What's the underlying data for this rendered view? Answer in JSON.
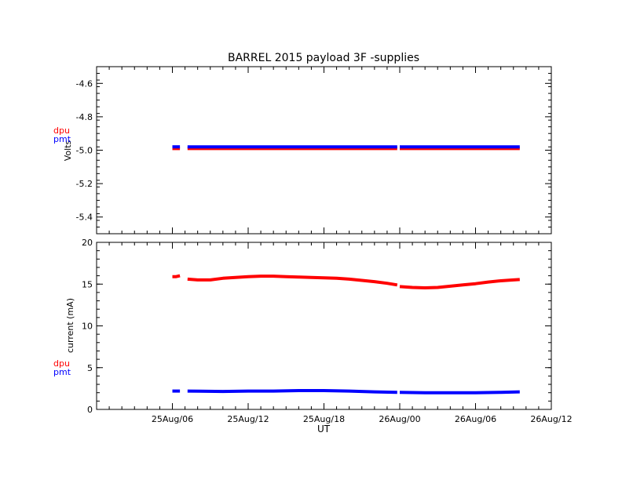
{
  "chart_data": [
    {
      "type": "line",
      "title": "BARREL 2015 payload 3F -supplies",
      "xlabel": "",
      "ylabel": "Volts",
      "ylim": [
        -5.5,
        -4.5
      ],
      "yticks": [
        "-4.6",
        "-4.8",
        "-5.0",
        "-5.2",
        "-5.4"
      ],
      "ytick_values": [
        -4.6,
        -4.8,
        -5.0,
        -5.2,
        -5.4
      ],
      "xlim_hours": [
        0,
        36
      ],
      "xtick_hours": [
        6,
        12,
        18,
        24,
        30,
        36
      ],
      "legend": [
        "dpu",
        "pmt"
      ],
      "series": [
        {
          "name": "dpu",
          "color": "#ff0000",
          "segments": [
            {
              "x": [
                6.0,
                6.3,
                6.6
              ],
              "y": [
                -4.99,
                -4.99,
                -4.99
              ]
            },
            {
              "x": [
                7.2,
                10,
                14,
                18,
                22,
                23.8
              ],
              "y": [
                -4.99,
                -4.99,
                -4.99,
                -4.99,
                -4.99,
                -4.99
              ]
            },
            {
              "x": [
                24.0,
                27,
                30,
                33.5
              ],
              "y": [
                -4.99,
                -4.99,
                -4.99,
                -4.99
              ]
            }
          ]
        },
        {
          "name": "pmt",
          "color": "#0000ff",
          "segments": [
            {
              "x": [
                6.0,
                6.3,
                6.6
              ],
              "y": [
                -4.98,
                -4.98,
                -4.98
              ]
            },
            {
              "x": [
                7.2,
                10,
                14,
                18,
                22,
                23.8
              ],
              "y": [
                -4.98,
                -4.98,
                -4.98,
                -4.98,
                -4.98,
                -4.98
              ]
            },
            {
              "x": [
                24.0,
                27,
                30,
                33.5
              ],
              "y": [
                -4.98,
                -4.98,
                -4.98,
                -4.98
              ]
            }
          ]
        }
      ]
    },
    {
      "type": "line",
      "title": "",
      "xlabel": "UT",
      "ylabel": "current (mA)",
      "ylim": [
        0,
        20
      ],
      "yticks": [
        "0",
        "5",
        "10",
        "15",
        "20"
      ],
      "ytick_values": [
        0,
        5,
        10,
        15,
        20
      ],
      "xlim_hours": [
        0,
        36
      ],
      "xtick_hours": [
        6,
        12,
        18,
        24,
        30,
        36
      ],
      "xticks": [
        "25Aug/06",
        "25Aug/12",
        "25Aug/18",
        "26Aug/00",
        "26Aug/06",
        "26Aug/12"
      ],
      "legend": [
        "dpu",
        "pmt"
      ],
      "series": [
        {
          "name": "dpu",
          "color": "#ff0000",
          "segments": [
            {
              "x": [
                6.0,
                6.3,
                6.6
              ],
              "y": [
                15.9,
                15.9,
                16.0
              ]
            },
            {
              "x": [
                7.2,
                8,
                9,
                10,
                11,
                12,
                13,
                14,
                15,
                16,
                17,
                18,
                19,
                20,
                21,
                22,
                23,
                23.8
              ],
              "y": [
                15.6,
                15.5,
                15.5,
                15.7,
                15.8,
                15.9,
                15.95,
                15.95,
                15.9,
                15.85,
                15.8,
                15.75,
                15.7,
                15.6,
                15.45,
                15.3,
                15.1,
                14.9
              ]
            },
            {
              "x": [
                24.0,
                25,
                26,
                27,
                28,
                29,
                30,
                31,
                32,
                33,
                33.5
              ],
              "y": [
                14.7,
                14.6,
                14.55,
                14.6,
                14.75,
                14.9,
                15.05,
                15.25,
                15.4,
                15.5,
                15.55
              ]
            }
          ]
        },
        {
          "name": "pmt",
          "color": "#0000ff",
          "segments": [
            {
              "x": [
                6.0,
                6.3,
                6.6
              ],
              "y": [
                2.2,
                2.2,
                2.2
              ]
            },
            {
              "x": [
                7.2,
                10,
                12,
                14,
                16,
                18,
                20,
                22,
                23.8
              ],
              "y": [
                2.2,
                2.15,
                2.2,
                2.2,
                2.25,
                2.25,
                2.2,
                2.1,
                2.05
              ]
            },
            {
              "x": [
                24.0,
                26,
                28,
                30,
                32,
                33.5
              ],
              "y": [
                2.05,
                2.0,
                2.0,
                2.0,
                2.05,
                2.1
              ]
            }
          ]
        }
      ]
    }
  ]
}
